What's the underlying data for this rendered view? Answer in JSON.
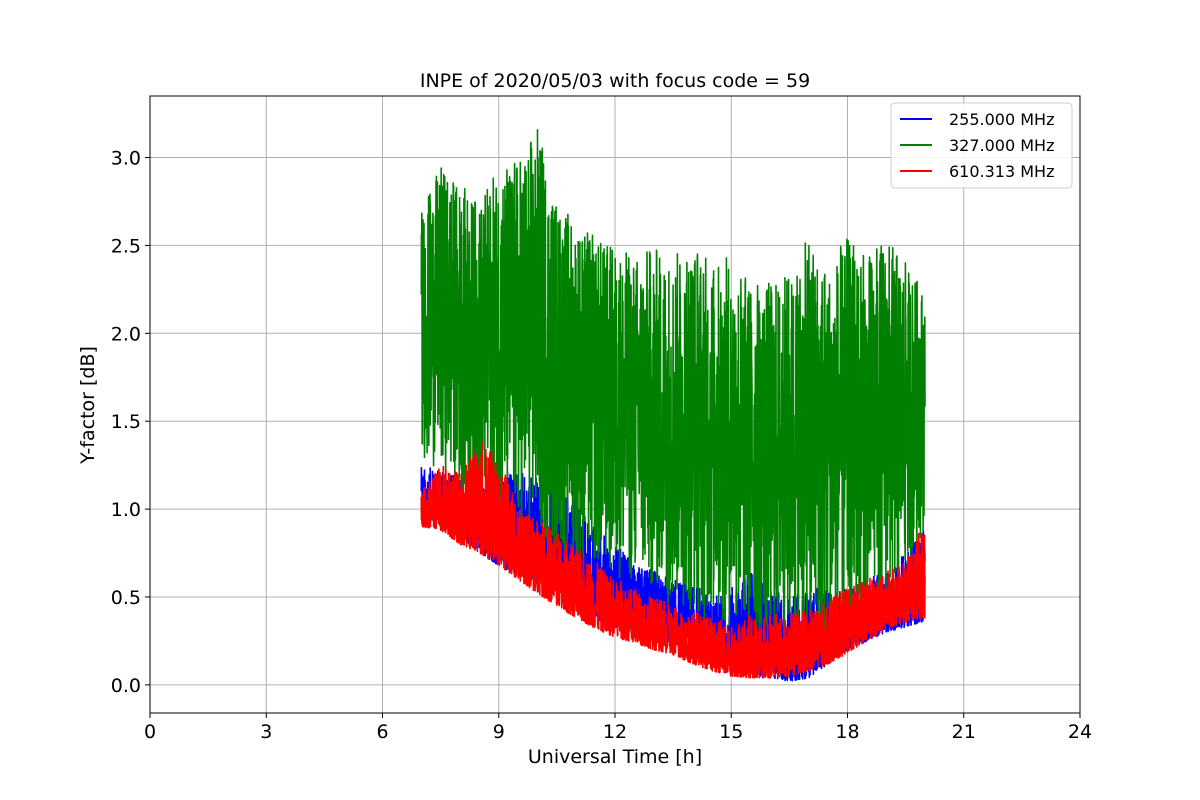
{
  "chart_data": {
    "type": "line",
    "title": "INPE of 2020/05/03 with focus code = 59",
    "xlabel": "Universal Time [h]",
    "ylabel": "Y-factor [dB]",
    "xlim": [
      0,
      24
    ],
    "ylim": [
      -0.16,
      3.35
    ],
    "xticks": [
      0,
      3,
      6,
      9,
      12,
      15,
      18,
      21,
      24
    ],
    "xtick_labels": [
      "0",
      "3",
      "6",
      "9",
      "12",
      "15",
      "18",
      "21",
      "24"
    ],
    "yticks": [
      0.0,
      0.5,
      1.0,
      1.5,
      2.0,
      2.5,
      3.0
    ],
    "ytick_labels": [
      "0.0",
      "0.5",
      "1.0",
      "1.5",
      "2.0",
      "2.5",
      "3.0"
    ],
    "grid": true,
    "legend_position": "top-right",
    "series": [
      {
        "name": "255.000 MHz",
        "color": "#0000ff",
        "x": [
          7.0,
          7.5,
          8.0,
          8.5,
          9.0,
          9.5,
          10.0,
          10.5,
          11.0,
          11.5,
          12.0,
          12.5,
          13.0,
          13.5,
          14.0,
          14.5,
          15.0,
          15.5,
          16.0,
          16.5,
          17.0,
          17.5,
          18.0,
          18.5,
          19.0,
          19.5,
          20.0
        ],
        "low": [
          0.95,
          0.93,
          0.85,
          0.75,
          0.68,
          0.62,
          0.6,
          0.52,
          0.45,
          0.38,
          0.32,
          0.28,
          0.25,
          0.23,
          0.2,
          0.12,
          0.08,
          0.05,
          0.04,
          0.02,
          0.04,
          0.12,
          0.2,
          0.25,
          0.3,
          0.33,
          0.36
        ],
        "high": [
          1.25,
          1.22,
          1.18,
          1.15,
          1.2,
          1.25,
          1.2,
          1.15,
          1.05,
          0.9,
          0.8,
          0.7,
          0.65,
          0.6,
          0.58,
          0.5,
          0.55,
          0.65,
          0.55,
          0.5,
          0.55,
          0.55,
          0.55,
          0.6,
          0.65,
          0.75,
          0.95
        ]
      },
      {
        "name": "327.000 MHz",
        "color": "#008000",
        "x": [
          7.0,
          7.5,
          8.0,
          8.5,
          9.0,
          9.5,
          10.0,
          10.5,
          11.0,
          11.5,
          12.0,
          12.5,
          13.0,
          13.5,
          14.0,
          14.5,
          15.0,
          15.5,
          16.0,
          16.5,
          17.0,
          17.5,
          18.0,
          18.5,
          19.0,
          19.5,
          20.0
        ],
        "low": [
          1.3,
          1.2,
          1.05,
          1.0,
          0.95,
          0.85,
          0.8,
          0.75,
          0.7,
          0.65,
          0.6,
          0.55,
          0.5,
          0.45,
          0.4,
          0.35,
          0.3,
          0.28,
          0.25,
          0.2,
          0.1,
          0.15,
          0.2,
          0.3,
          0.4,
          0.6,
          0.9
        ],
        "high": [
          2.7,
          2.95,
          2.85,
          2.75,
          2.95,
          3.0,
          3.18,
          2.75,
          2.65,
          2.55,
          2.5,
          2.45,
          2.5,
          2.45,
          2.55,
          2.4,
          2.45,
          2.3,
          2.3,
          2.35,
          2.55,
          2.4,
          2.55,
          2.45,
          2.55,
          2.4,
          2.25
        ]
      },
      {
        "name": "610.313 MHz",
        "color": "#ff0000",
        "x": [
          7.0,
          7.5,
          8.0,
          8.5,
          9.0,
          9.5,
          10.0,
          10.5,
          11.0,
          11.5,
          12.0,
          12.5,
          13.0,
          13.5,
          14.0,
          14.5,
          15.0,
          15.5,
          16.0,
          16.5,
          17.0,
          17.5,
          18.0,
          18.5,
          19.0,
          19.5,
          20.0
        ],
        "low": [
          0.9,
          0.88,
          0.8,
          0.75,
          0.68,
          0.6,
          0.52,
          0.45,
          0.38,
          0.32,
          0.27,
          0.24,
          0.2,
          0.17,
          0.12,
          0.08,
          0.05,
          0.04,
          0.04,
          0.05,
          0.08,
          0.12,
          0.18,
          0.25,
          0.32,
          0.36,
          0.38
        ],
        "high": [
          1.1,
          1.25,
          1.2,
          1.4,
          1.3,
          1.0,
          0.95,
          0.88,
          0.78,
          0.7,
          0.62,
          0.55,
          0.5,
          0.45,
          0.42,
          0.38,
          0.35,
          0.4,
          0.4,
          0.42,
          0.42,
          0.48,
          0.55,
          0.6,
          0.65,
          0.7,
          0.95
        ]
      }
    ]
  }
}
